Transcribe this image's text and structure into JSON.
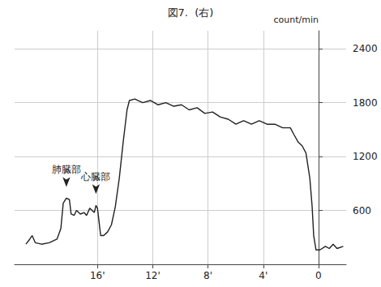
{
  "chart_data": {
    "type": "line",
    "title": "図7.  (右)",
    "y_label": "count/min",
    "color": "#222222",
    "grid": true,
    "xlim": [
      22,
      -2
    ],
    "xticks": [
      {
        "value": 16,
        "label": "16'"
      },
      {
        "value": 12,
        "label": "12'"
      },
      {
        "value": 8,
        "label": "8'"
      },
      {
        "value": 4,
        "label": "4'"
      },
      0
    ],
    "ylim": [
      0,
      2600
    ],
    "yticks": [
      600,
      1200,
      1800,
      2400
    ],
    "x": [
      21.18,
      20.9,
      20.73,
      20.5,
      20.05,
      19.49,
      18.93,
      18.65,
      18.48,
      18.25,
      18.03,
      17.91,
      17.69,
      17.52,
      17.24,
      16.96,
      16.79,
      16.56,
      16.39,
      16.23,
      16.11,
      16.0,
      15.89,
      15.77,
      15.55,
      15.27,
      14.99,
      14.71,
      14.42,
      14.14,
      13.86,
      13.69,
      13.3,
      12.73,
      12.17,
      11.61,
      11.05,
      10.48,
      9.92,
      9.36,
      8.79,
      8.23,
      7.67,
      7.1,
      6.54,
      5.98,
      5.42,
      4.85,
      4.29,
      3.73,
      3.16,
      2.6,
      2.04,
      1.76,
      1.47,
      1.19,
      0.91,
      0.63,
      0.46,
      0.35,
      0.18,
      -0.1,
      -0.5,
      -0.78,
      -1.06,
      -1.34,
      -1.79
    ],
    "values": [
      224,
      280,
      320,
      240,
      224,
      240,
      280,
      400,
      680,
      736,
      720,
      560,
      544,
      600,
      560,
      576,
      544,
      624,
      600,
      576,
      656,
      624,
      480,
      320,
      320,
      360,
      440,
      640,
      960,
      1360,
      1720,
      1824,
      1840,
      1800,
      1824,
      1776,
      1800,
      1760,
      1776,
      1720,
      1744,
      1680,
      1696,
      1640,
      1616,
      1560,
      1600,
      1560,
      1600,
      1560,
      1560,
      1520,
      1520,
      1440,
      1360,
      1320,
      1240,
      960,
      640,
      320,
      160,
      160,
      200,
      176,
      224,
      176,
      200
    ],
    "annotations": [
      {
        "text": "肺臓部",
        "x": 18.25,
        "y": 736
      },
      {
        "text": "心臓部",
        "x": 16.11,
        "y": 656
      }
    ]
  }
}
